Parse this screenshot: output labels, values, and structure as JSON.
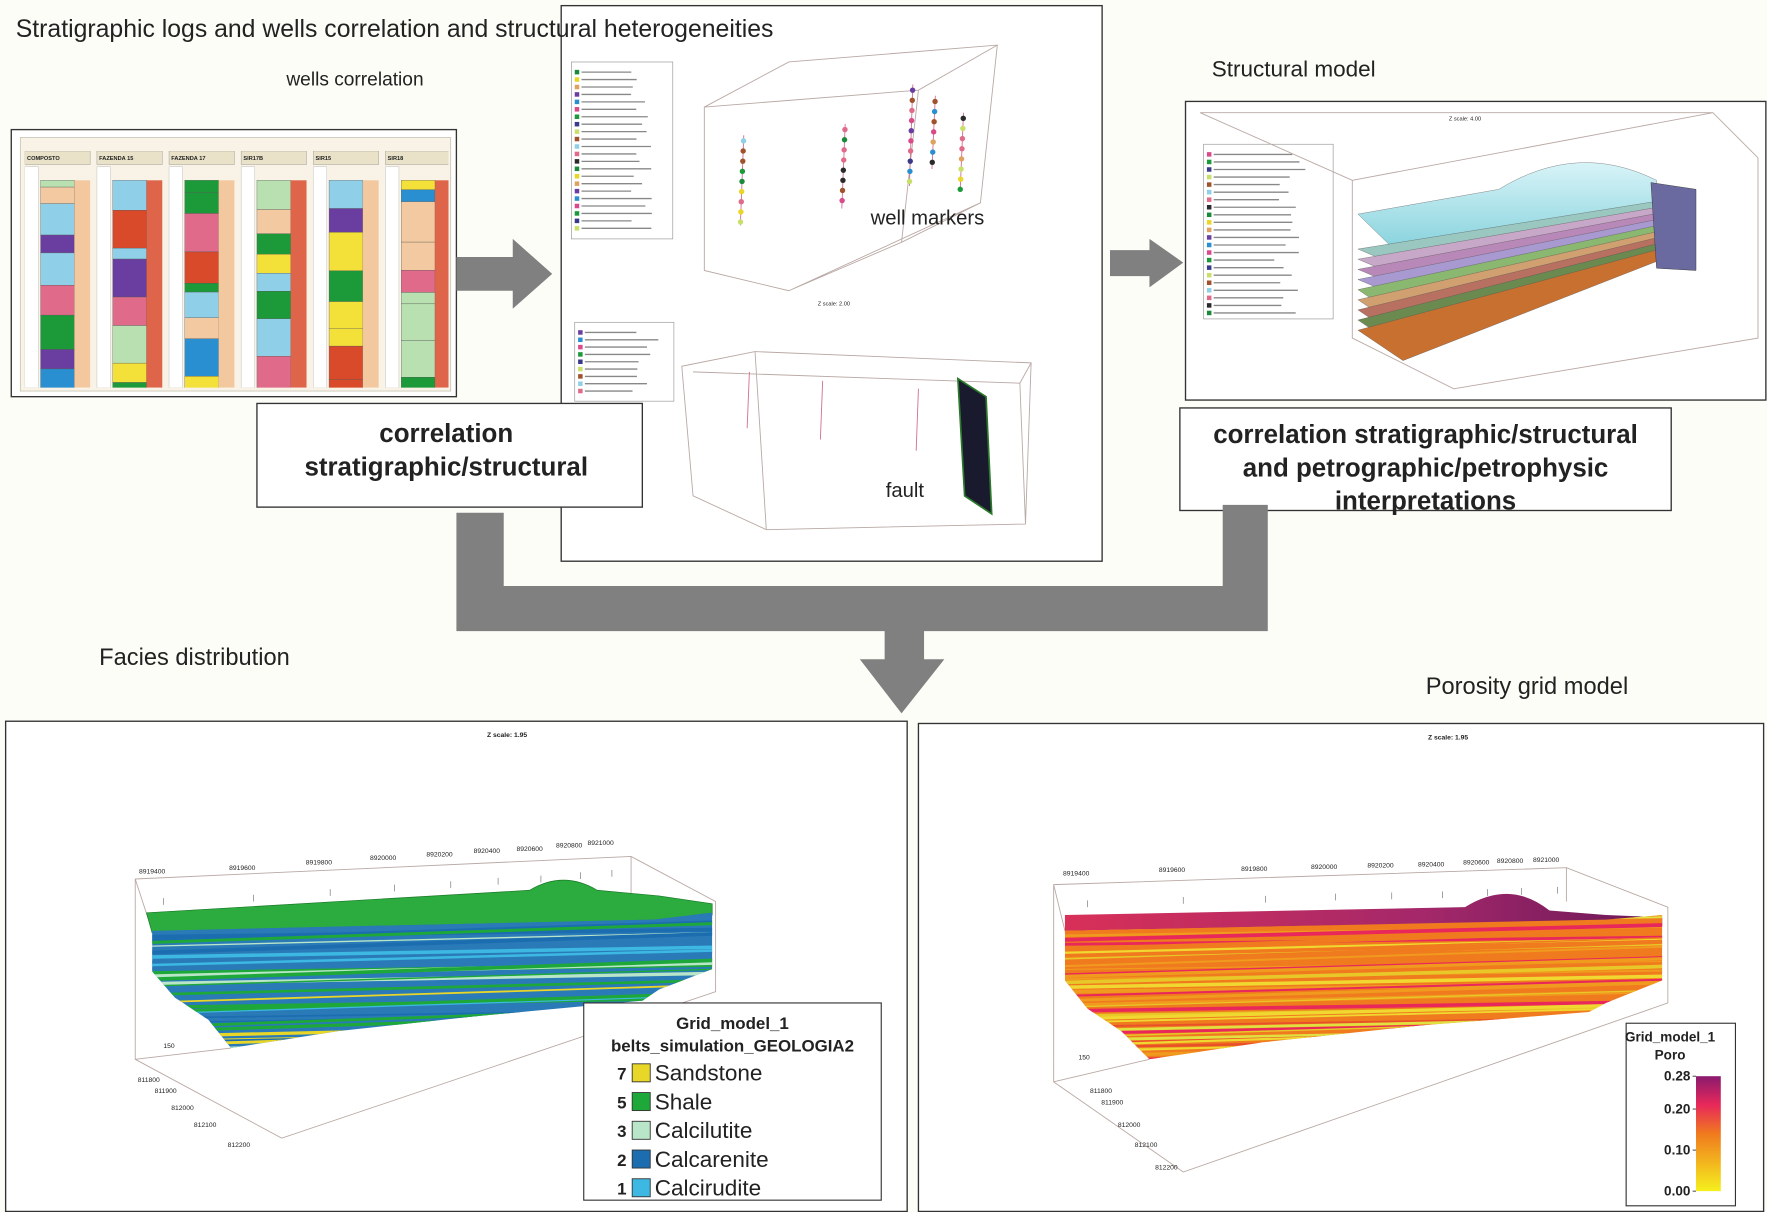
{
  "title": "Stratigraphic logs and wells correlation and structural heterogeneities",
  "wells_correlation": {
    "label": "wells correlation",
    "wells": [
      "COMPOSTO",
      "FAZENDA 15",
      "FAZENDA 17",
      "SIR17B",
      "SIR15",
      "SIR18"
    ]
  },
  "correlation_box": {
    "lines": [
      "correlation",
      "stratigraphic/structural"
    ]
  },
  "model_3d": {
    "well_label": "well markers",
    "fault_label": "fault",
    "z_scale": "Z scale: 2.00"
  },
  "structural_model": {
    "title": "Structural model",
    "z_scale": "Z scale: 4.00"
  },
  "interpretation_box": {
    "lines": [
      "correlation stratigraphic/structural",
      "and petrographic/petrophysic",
      "interpretations"
    ]
  },
  "facies": {
    "title": "Facies distribution",
    "z_scale": "Z scale: 1.95",
    "x_ticks": [
      8919400,
      8919600,
      8919800,
      8920000,
      8920200,
      8920400,
      8920600,
      8920800,
      8921000
    ],
    "side_ticks": [
      150,
      811800,
      811900,
      812000,
      812100,
      812200
    ],
    "legend": {
      "title": [
        "Grid_model_1",
        "belts_simulation_GEOLOGIA2"
      ],
      "items": [
        {
          "code": 7,
          "name": "Sandstone",
          "color": "#e8d628"
        },
        {
          "code": 5,
          "name": "Shale",
          "color": "#1fa83a"
        },
        {
          "code": 3,
          "name": "Calcilutite",
          "color": "#b9e6c8"
        },
        {
          "code": 2,
          "name": "Calcarenite",
          "color": "#1c6db0"
        },
        {
          "code": 1,
          "name": "Calcirudite",
          "color": "#3cb8e2"
        }
      ]
    }
  },
  "porosity": {
    "title": "Porosity grid model",
    "z_scale": "Z scale: 1.95",
    "x_ticks": [
      8919400,
      8919600,
      8919800,
      8920000,
      8920200,
      8920400,
      8920600,
      8920800,
      8921000
    ],
    "side_ticks": [
      150,
      811800,
      811900,
      812000,
      812100,
      812200
    ],
    "legend": {
      "title": [
        "Grid_model_1",
        "Poro"
      ],
      "ticks": [
        {
          "value": 0.28,
          "label": "0.28"
        },
        {
          "value": 0.2,
          "label": "0.20"
        },
        {
          "value": 0.1,
          "label": "0.10"
        },
        {
          "value": 0,
          "label": "0.00"
        }
      ]
    }
  }
}
